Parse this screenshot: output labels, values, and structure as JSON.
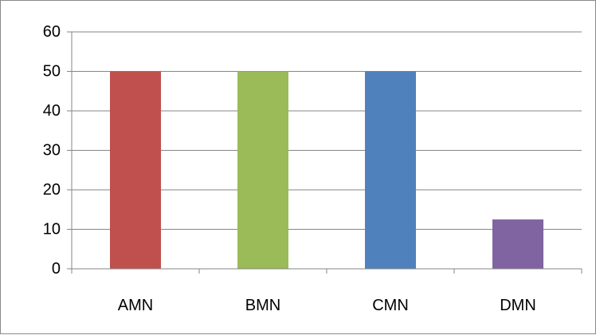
{
  "chart_data": {
    "type": "bar",
    "categories": [
      "AMN",
      "BMN",
      "CMN",
      "DMN"
    ],
    "values": [
      50,
      50,
      50,
      12.5
    ],
    "colors": [
      "#c0504d",
      "#9bbb59",
      "#4f81bd",
      "#8064a2"
    ],
    "ylim": [
      0,
      60
    ],
    "yticks": [
      0,
      10,
      20,
      30,
      40,
      50,
      60
    ],
    "grid": true,
    "legend": "none",
    "title": "",
    "xlabel": "",
    "ylabel": ""
  }
}
